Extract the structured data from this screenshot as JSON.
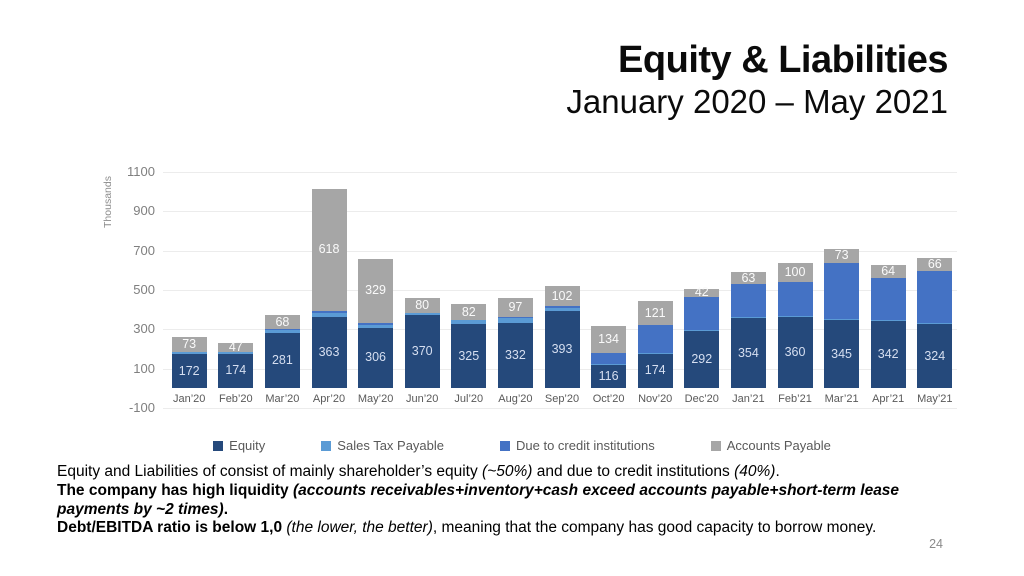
{
  "slide": {
    "title": "Equity & Liabilities",
    "subtitle": "January 2020 – May 2021",
    "page_number": "24"
  },
  "chart_data": {
    "type": "bar",
    "stacked": true,
    "title": "Equity & Liabilities, January 2020 – May 2021",
    "y_axis": {
      "title": "Thousands",
      "min": -100,
      "max": 1100,
      "ticks": [
        1100,
        900,
        700,
        500,
        300,
        100,
        -100
      ],
      "gridlines": true
    },
    "categories": [
      "Jan’20",
      "Feb’20",
      "Mar’20",
      "Apr’20",
      "May’20",
      "Jun’20",
      "Jul’20",
      "Aug’20",
      "Sep’20",
      "Oct’20",
      "Nov’20",
      "Dec’20",
      "Jan’21",
      "Feb’21",
      "Mar’21",
      "Apr’21",
      "May’21"
    ],
    "series": [
      {
        "name": "Equity",
        "color": "#25497B",
        "label_color": "#D6DFF1",
        "labels_visible": true,
        "values": [
          172,
          174,
          281,
          363,
          306,
          370,
          325,
          332,
          393,
          116,
          174,
          292,
          354,
          360,
          345,
          342,
          324
        ]
      },
      {
        "name": "Sales Tax Payable",
        "color": "#5B9BD5",
        "labels_visible": false,
        "values": [
          12,
          8,
          15,
          18,
          15,
          10,
          20,
          22,
          15,
          5,
          5,
          5,
          5,
          5,
          5,
          5,
          5
        ]
      },
      {
        "name": "Due to credit institutions",
        "color": "#4472C4",
        "labels_visible": false,
        "values": [
          0,
          0,
          5,
          12,
          8,
          0,
          0,
          5,
          8,
          58,
          142,
          166,
          168,
          173,
          286,
          213,
          265
        ]
      },
      {
        "name": "Accounts Payable",
        "color": "#A6A6A6",
        "label_color": "#FAFAFA",
        "labels_visible": true,
        "values": [
          73,
          47,
          68,
          618,
          329,
          80,
          82,
          97,
          102,
          134,
          121,
          42,
          63,
          100,
          73,
          64,
          66
        ]
      }
    ],
    "legend": {
      "position": "bottom",
      "items": [
        "Equity",
        "Sales Tax Payable",
        "Due to credit institutions",
        "Accounts Payable"
      ]
    }
  },
  "footer": {
    "paragraphs": [
      [
        {
          "text": "Equity and Liabilities of consist of mainly shareholder’s equity ",
          "style": "n"
        },
        {
          "text": "(~50%)",
          "style": "i"
        },
        {
          "text": " and due to credit institutions ",
          "style": "n"
        },
        {
          "text": "(40%)",
          "style": "i"
        },
        {
          "text": ".",
          "style": "n"
        }
      ],
      [
        {
          "text": "The company has high liquidity ",
          "style": "b"
        },
        {
          "text": "(accounts receivables+inventory+cash exceed accounts payable+short-term lease payments by ~2 times)",
          "style": "bi"
        },
        {
          "text": ".",
          "style": "b"
        }
      ],
      [
        {
          "text": "Debt/EBITDA ratio is below 1,0 ",
          "style": "b"
        },
        {
          "text": "(the lower, the better)",
          "style": "i"
        },
        {
          "text": ", meaning that the company has good capacity to borrow money.",
          "style": "n"
        }
      ]
    ]
  }
}
